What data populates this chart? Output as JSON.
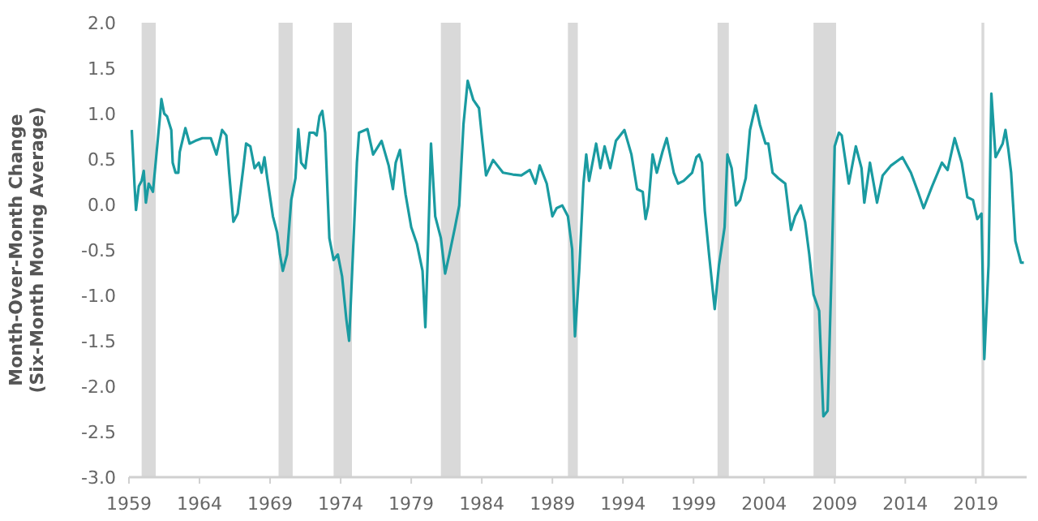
{
  "chart_data": {
    "type": "line",
    "ylabel": "Month-Over-Month Change\n(Six-Month Moving Average)",
    "xlim": [
      1959,
      2022.6
    ],
    "xticks": [
      1959,
      1964,
      1969,
      1974,
      1979,
      1984,
      1989,
      1994,
      1999,
      2004,
      2009,
      2014,
      2019
    ],
    "ylim": [
      -3,
      2
    ],
    "yticks": [
      {
        "value": 2,
        "label": "2.0"
      },
      {
        "value": 1.5,
        "label": "1.5"
      },
      {
        "value": 1,
        "label": "1.0"
      },
      {
        "value": 0.5,
        "label": "0.5"
      },
      {
        "value": 0,
        "label": "0.0"
      },
      {
        "value": -0.5,
        "label": "-0.5"
      },
      {
        "value": -1,
        "label": "-1.0"
      },
      {
        "value": -1.5,
        "label": "-1.5"
      },
      {
        "value": -2,
        "label": "-2.0"
      },
      {
        "value": -2.5,
        "label": "-2.5"
      },
      {
        "value": -3,
        "label": "-3.0"
      }
    ],
    "grid": false,
    "line_style": "solid",
    "marker": "none",
    "bands": [
      {
        "axis": "x",
        "from": 1959.9,
        "to": 1960.9,
        "color": "#d9d9d9"
      },
      {
        "axis": "x",
        "from": 1969.6,
        "to": 1970.6,
        "color": "#d9d9d9"
      },
      {
        "axis": "x",
        "from": 1973.5,
        "to": 1974.8,
        "color": "#d9d9d9"
      },
      {
        "axis": "x",
        "from": 1981.1,
        "to": 1982.5,
        "color": "#d9d9d9"
      },
      {
        "axis": "x",
        "from": 1990.1,
        "to": 1990.8,
        "color": "#d9d9d9"
      },
      {
        "axis": "x",
        "from": 2000.7,
        "to": 2001.5,
        "color": "#d9d9d9"
      },
      {
        "axis": "x",
        "from": 2007.5,
        "to": 2009.1,
        "color": "#d9d9d9"
      },
      {
        "axis": "x",
        "from": 2019.4,
        "to": 2019.6,
        "color": "#d9d9d9"
      }
    ],
    "series": [
      {
        "color": "#1a9ba1",
        "x": [
          1959.2,
          1959.4,
          1959.5,
          1959.7,
          1959.9,
          1960.05,
          1960.2,
          1960.4,
          1960.7,
          1961.0,
          1961.2,
          1961.3,
          1961.5,
          1961.7,
          1962.0,
          1962.1,
          1962.3,
          1962.5,
          1962.6,
          1963.0,
          1963.3,
          1963.7,
          1964.2,
          1964.8,
          1965.2,
          1965.6,
          1965.9,
          1966.1,
          1966.4,
          1966.7,
          1967.1,
          1967.3,
          1967.6,
          1967.9,
          1968.2,
          1968.4,
          1968.6,
          1968.8,
          1969.2,
          1969.5,
          1969.7,
          1969.9,
          1970.2,
          1970.5,
          1970.8,
          1971.0,
          1971.2,
          1971.5,
          1971.8,
          1972.1,
          1972.3,
          1972.5,
          1972.7,
          1972.9,
          1973.2,
          1973.5,
          1973.8,
          1974.1,
          1974.4,
          1974.6,
          1975.15,
          1975.3,
          1975.9,
          1976.3,
          1976.9,
          1977.4,
          1977.7,
          1977.9,
          1978.2,
          1978.6,
          1979.0,
          1979.4,
          1979.8,
          1980.0,
          1980.2,
          1980.4,
          1980.7,
          1981.1,
          1981.4,
          1981.7,
          1982.1,
          1982.4,
          1982.7,
          1983.0,
          1983.4,
          1983.8,
          1984.0,
          1984.3,
          1984.8,
          1985.5,
          1986.2,
          1986.8,
          1987.4,
          1987.8,
          1988.1,
          1988.6,
          1989.0,
          1989.3,
          1989.7,
          1990.1,
          1990.4,
          1990.6,
          1990.9,
          1991.2,
          1991.4,
          1991.6,
          1992.1,
          1992.4,
          1992.7,
          1993.1,
          1993.5,
          1994.1,
          1994.6,
          1995.0,
          1995.4,
          1995.6,
          1995.8,
          1996.1,
          1996.4,
          1996.8,
          1997.1,
          1997.6,
          1997.9,
          1998.3,
          1998.9,
          1999.2,
          1999.4,
          1999.6,
          1999.8,
          2000.1,
          2000.5,
          2000.8,
          2001.2,
          2001.4,
          2001.7,
          2002.0,
          2002.3,
          2002.7,
          2003.0,
          2003.4,
          2003.7,
          2004.1,
          2004.3,
          2004.6,
          2005.0,
          2005.5,
          2005.9,
          2006.2,
          2006.6,
          2006.9,
          2007.2,
          2007.5,
          2007.9,
          2008.2,
          2008.5,
          2008.8,
          2009.0,
          2009.3,
          2009.5,
          2010.0,
          2010.5,
          2010.9,
          2011.1,
          2011.5,
          2012.0,
          2012.4,
          2013.0,
          2013.8,
          2014.4,
          2014.9,
          2015.3,
          2015.9,
          2016.6,
          2017.0,
          2017.5,
          2018.0,
          2018.4,
          2018.8,
          2019.1,
          2019.4,
          2019.6,
          2019.9,
          2020.1,
          2020.4,
          2020.9,
          2021.1,
          2021.3,
          2021.5,
          2021.8,
          2022.2,
          2022.4
        ],
        "values": [
          0.82,
          0.2,
          -0.06,
          0.2,
          0.26,
          0.37,
          0.02,
          0.23,
          0.14,
          0.64,
          0.97,
          1.16,
          1.0,
          0.97,
          0.82,
          0.46,
          0.35,
          0.35,
          0.58,
          0.84,
          0.67,
          0.7,
          0.73,
          0.73,
          0.55,
          0.82,
          0.76,
          0.35,
          -0.19,
          -0.1,
          0.4,
          0.67,
          0.64,
          0.4,
          0.46,
          0.35,
          0.52,
          0.29,
          -0.13,
          -0.31,
          -0.55,
          -0.73,
          -0.55,
          0.05,
          0.29,
          0.83,
          0.46,
          0.4,
          0.79,
          0.79,
          0.76,
          0.97,
          1.03,
          0.79,
          -0.37,
          -0.61,
          -0.55,
          -0.79,
          -1.26,
          -1.5,
          0.46,
          0.79,
          0.83,
          0.55,
          0.7,
          0.43,
          0.17,
          0.46,
          0.6,
          0.11,
          -0.25,
          -0.43,
          -0.73,
          -1.35,
          -0.43,
          0.67,
          -0.13,
          -0.37,
          -0.76,
          -0.55,
          -0.25,
          -0.01,
          0.88,
          1.36,
          1.15,
          1.06,
          0.76,
          0.32,
          0.49,
          0.35,
          0.33,
          0.32,
          0.38,
          0.23,
          0.43,
          0.23,
          -0.13,
          -0.04,
          -0.01,
          -0.13,
          -0.49,
          -1.45,
          -0.73,
          0.23,
          0.55,
          0.26,
          0.67,
          0.4,
          0.64,
          0.4,
          0.7,
          0.82,
          0.55,
          0.17,
          0.14,
          -0.16,
          -0.01,
          0.55,
          0.35,
          0.58,
          0.73,
          0.35,
          0.23,
          0.26,
          0.35,
          0.52,
          0.55,
          0.46,
          -0.07,
          -0.55,
          -1.15,
          -0.67,
          -0.25,
          0.55,
          0.4,
          -0.01,
          0.05,
          0.29,
          0.82,
          1.09,
          0.88,
          0.67,
          0.67,
          0.35,
          0.29,
          0.23,
          -0.28,
          -0.13,
          -0.01,
          -0.19,
          -0.55,
          -0.99,
          -1.17,
          -2.33,
          -2.27,
          -0.61,
          0.64,
          0.79,
          0.76,
          0.23,
          0.64,
          0.4,
          0.02,
          0.46,
          0.02,
          0.32,
          0.43,
          0.52,
          0.35,
          0.14,
          -0.04,
          0.2,
          0.46,
          0.38,
          0.73,
          0.46,
          0.08,
          0.05,
          -0.16,
          -0.1,
          -1.7,
          -0.67,
          1.22,
          0.52,
          0.67,
          0.82,
          0.61,
          0.35,
          -0.4,
          -0.64,
          -0.64
        ]
      }
    ]
  }
}
